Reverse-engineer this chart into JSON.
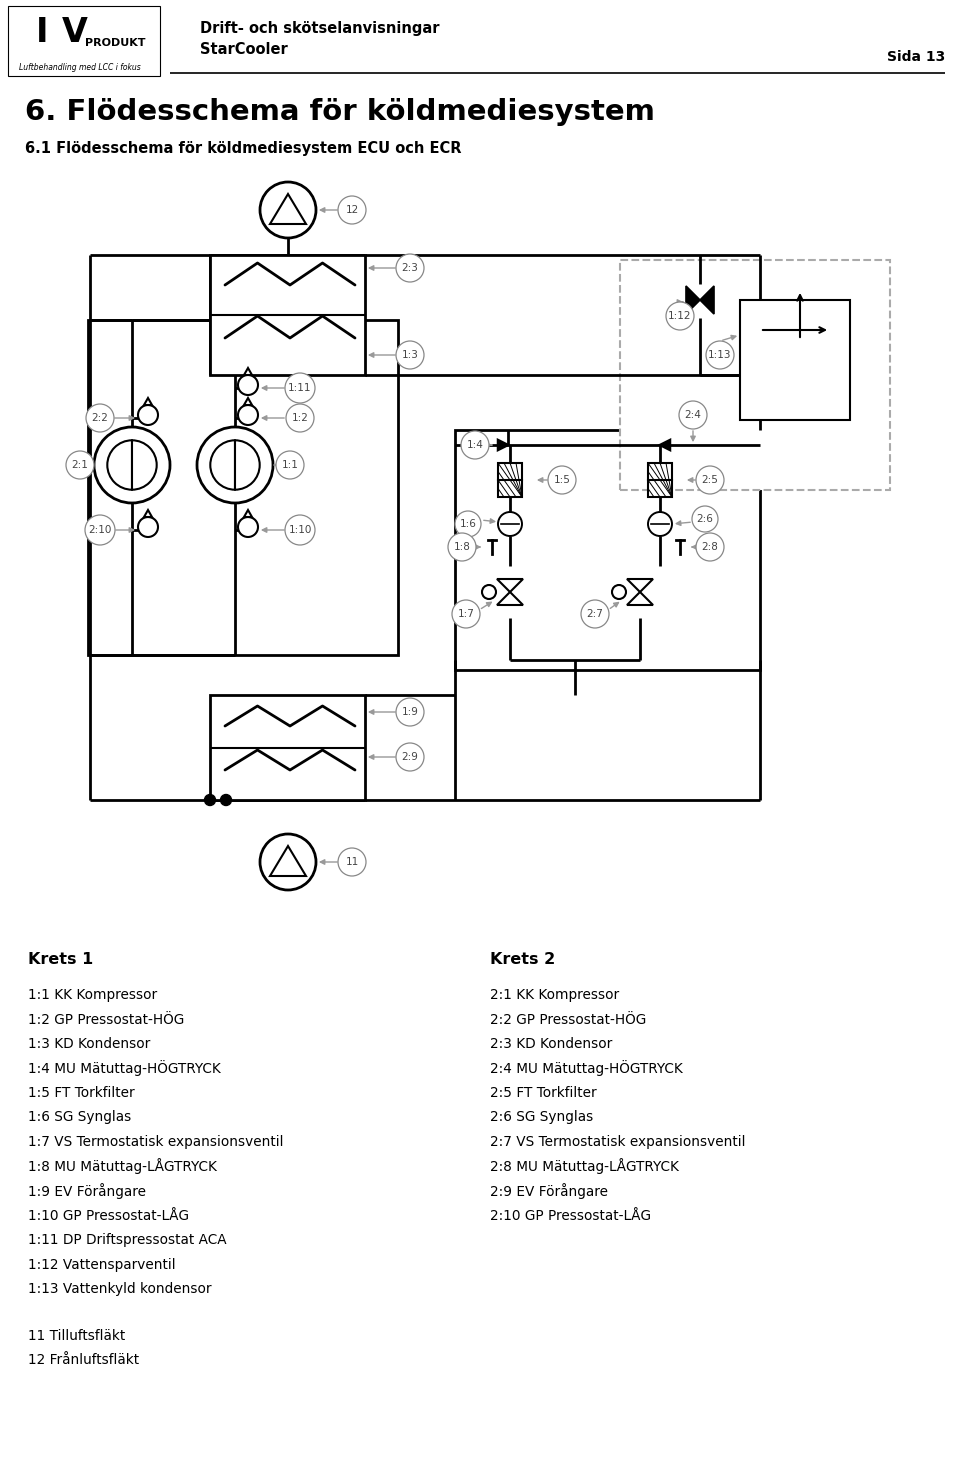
{
  "title": "6. Flödesschema för köldmediesystem",
  "subtitle": "6.1 Flödesschema för köldmediesystem ECU och ECR",
  "header_line1": "Drift- och skötselanvisningar",
  "header_line2": "StarCooler",
  "header_page": "Sida 13",
  "bg_color": "#ffffff",
  "krets1_title": "Krets 1",
  "krets2_title": "Krets 2",
  "krets1_items": [
    "1:1 KK Kompressor",
    "1:2 GP Pressostat-HÖG",
    "1:3 KD Kondensor",
    "1:4 MU Mätuttag-HÖGTRYCK",
    "1:5 FT Torkfilter",
    "1:6 SG Synglas",
    "1:7 VS Termostatisk expansionsventil",
    "1:8 MU Mätuttag-LÅGTRYCK",
    "1:9 EV Förångare",
    "1:10 GP Pressostat-LÅG",
    "1:11 DP Driftspressostat ACA",
    "1:12 Vattensparventil",
    "1:13 Vattenkyld kondensor"
  ],
  "krets2_items": [
    "2:1 KK Kompressor",
    "2:2 GP Pressostat-HÖG",
    "2:3 KD Kondensor",
    "2:4 MU Mätuttag-HÖGTRYCK",
    "2:5 FT Torkfilter",
    "2:6 SG Synglas",
    "2:7 VS Termostatisk expansionsventil",
    "2:8 MU Mätuttag-LÅGTRYCK",
    "2:9 EV Förångare",
    "2:10 GP Pressostat-LÅG"
  ],
  "extra_items": [
    "11 Tilluftsfläkt",
    "12 Frånluftsfläkt"
  ]
}
